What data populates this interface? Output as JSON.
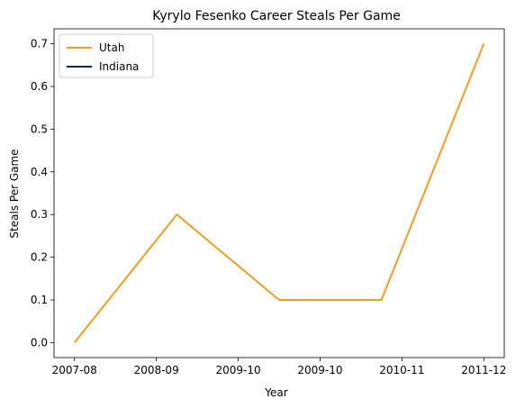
{
  "chart_data": {
    "type": "line",
    "title": "Kyrylo Fesenko Career Steals Per Game",
    "xlabel": "Year",
    "ylabel": "Steals Per Game",
    "x_tick_labels": [
      "2007-08",
      "2008-09",
      "2009-10",
      "2009-10",
      "2010-11",
      "2011-12"
    ],
    "ylim": [
      -0.035,
      0.735
    ],
    "yticks": [
      0.0,
      0.1,
      0.2,
      0.3,
      0.4,
      0.5,
      0.6,
      0.7
    ],
    "ytick_labels": [
      "0.0",
      "0.1",
      "0.2",
      "0.3",
      "0.4",
      "0.5",
      "0.6",
      "0.7"
    ],
    "grid": false,
    "legend_position": "top-left",
    "series": [
      {
        "name": "Utah",
        "color": "#F39C1E",
        "points": [
          {
            "x": 0.0,
            "y": 0.0
          },
          {
            "x": 1.2,
            "y": 0.3
          },
          {
            "x": 2.4,
            "y": 0.1
          },
          {
            "x": 3.6,
            "y": 0.1
          },
          {
            "x": 4.8,
            "y": 0.7
          }
        ]
      },
      {
        "name": "Indiana",
        "color": "#002D62",
        "points": []
      }
    ],
    "xlim": [
      -0.24,
      5.04
    ],
    "x_tick_positions": [
      0.0,
      0.96,
      1.92,
      2.88,
      3.84,
      4.8
    ]
  }
}
